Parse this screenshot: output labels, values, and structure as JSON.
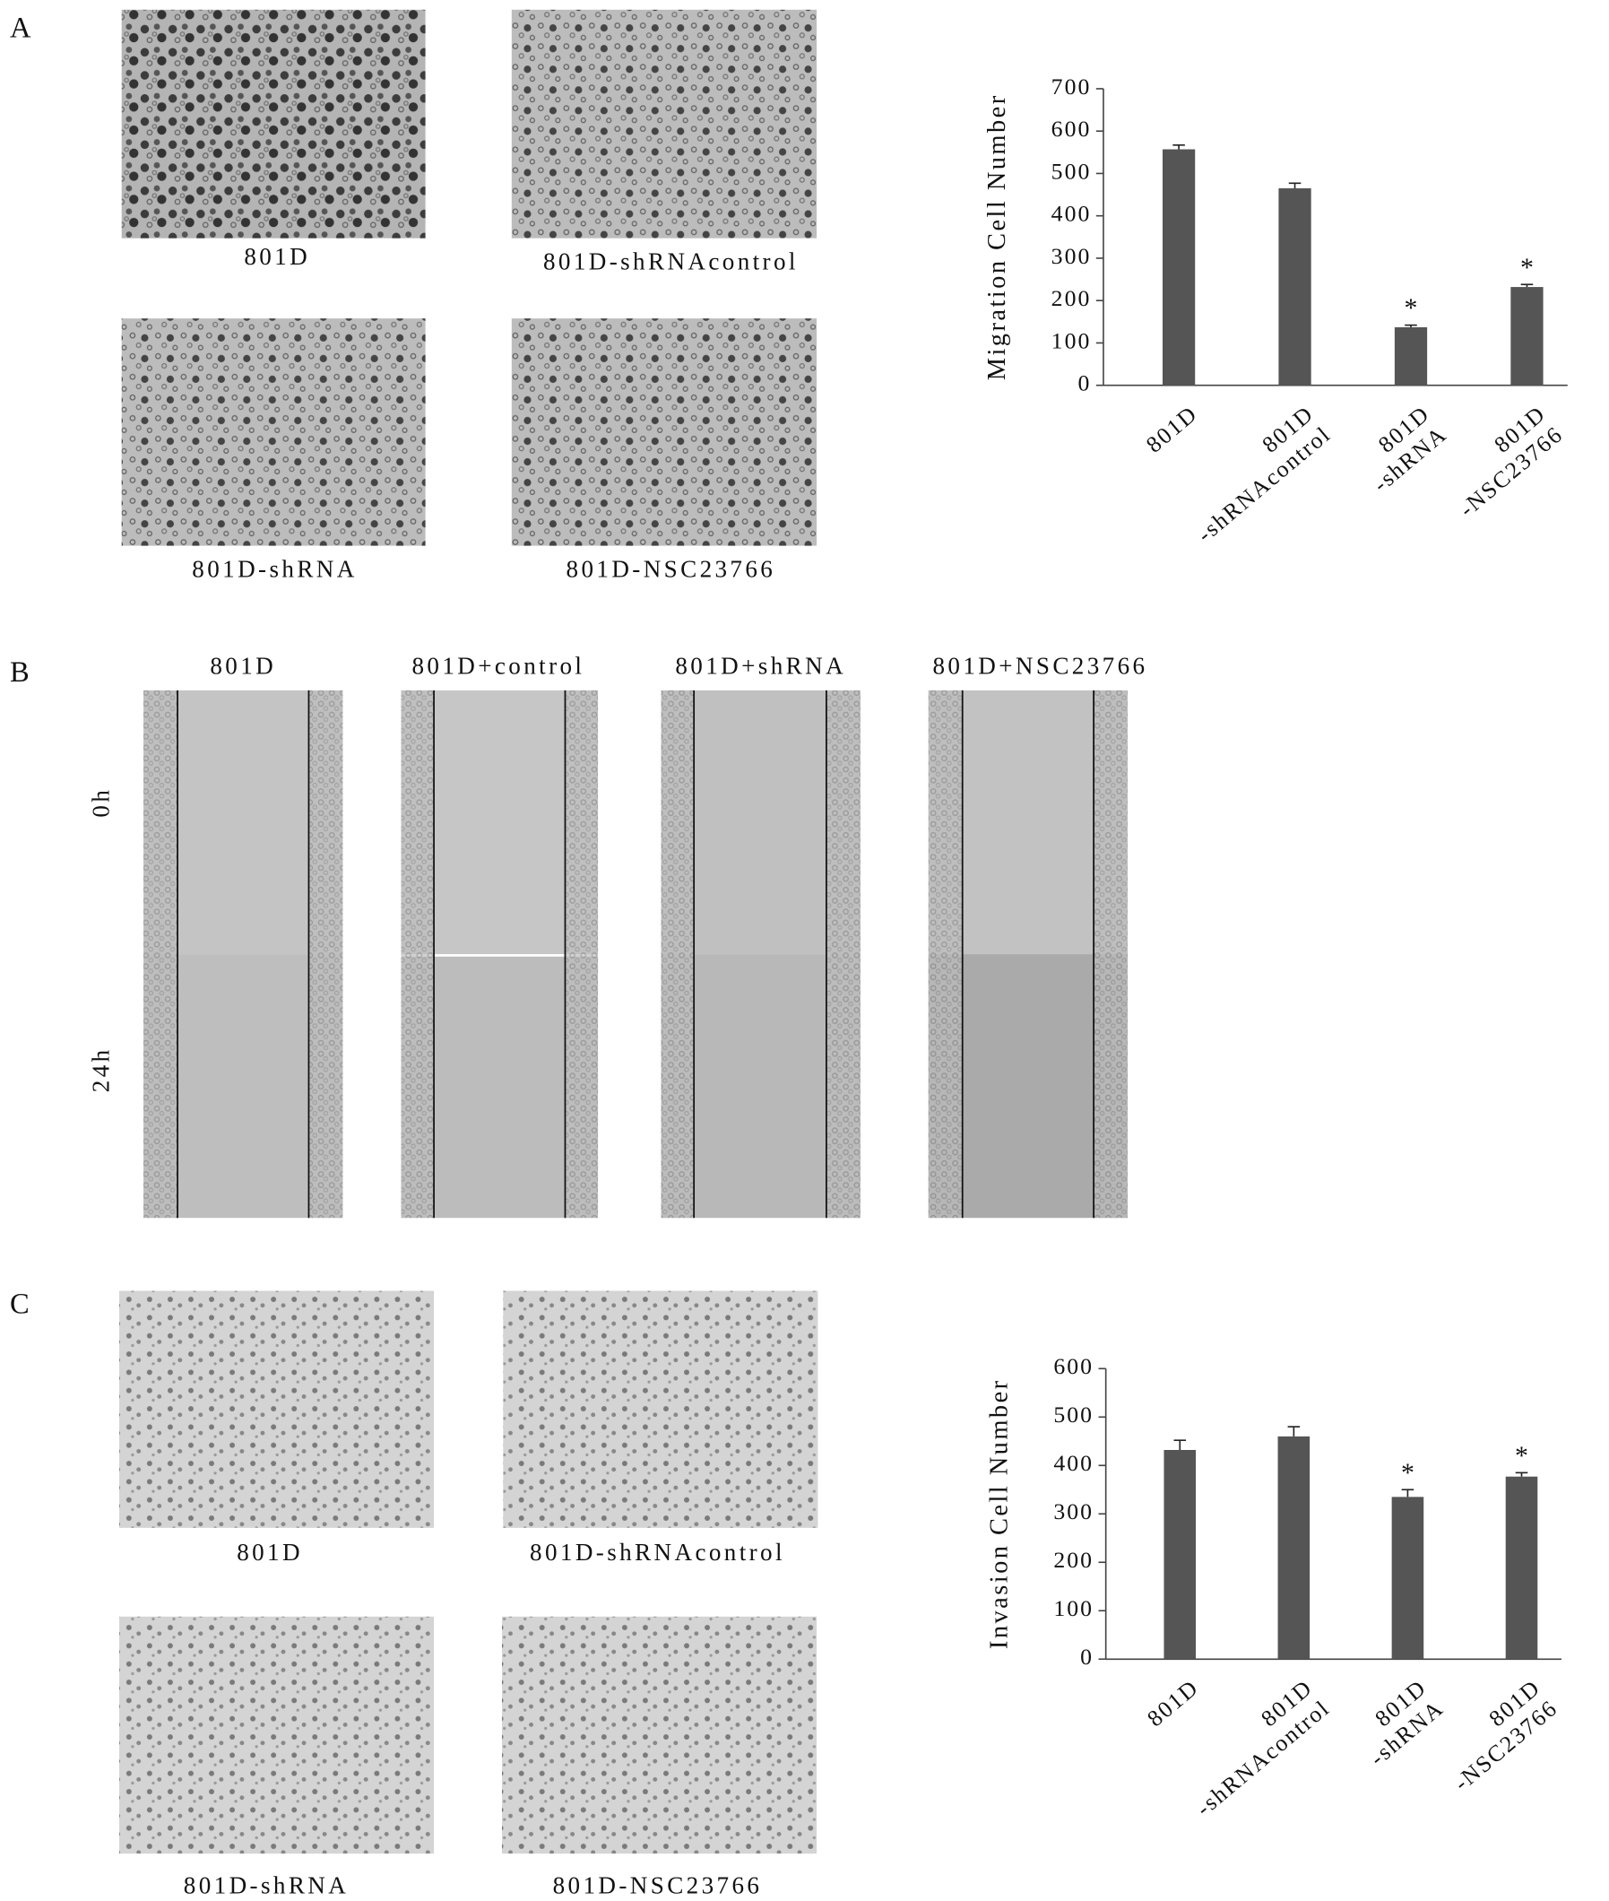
{
  "panel_labels": [
    "A",
    "B",
    "C"
  ],
  "panel_a": {
    "captions": [
      "801D",
      "801D-shRNAcontrol",
      "801D-shRNA",
      "801D-NSC23766"
    ]
  },
  "panel_b": {
    "columns": [
      "801D",
      "801D+control",
      "801D+shRNA",
      "801D+NSC23766"
    ],
    "rows": [
      "0h",
      "24h"
    ]
  },
  "panel_c": {
    "captions": [
      "801D",
      "801D-shRNAcontrol",
      "801D-shRNA",
      "801D-NSC23766"
    ]
  },
  "chart_data": [
    {
      "type": "bar",
      "y_label": "Migration Cell Number",
      "categories": [
        [
          "801D"
        ],
        [
          "801D",
          "-shRNAcontrol"
        ],
        [
          "801D",
          "-shRNA"
        ],
        [
          "801D",
          "-NSC23766"
        ]
      ],
      "values": [
        557,
        465,
        137,
        232
      ],
      "errors": [
        10,
        12,
        5,
        6
      ],
      "significance": [
        null,
        null,
        "*",
        "*"
      ],
      "color": "#555555",
      "ylim": [
        0,
        700
      ],
      "yticks": [
        0,
        100,
        200,
        300,
        400,
        500,
        600,
        700
      ]
    },
    {
      "type": "bar",
      "y_label": "Invasion Cell Number",
      "categories": [
        [
          "801D"
        ],
        [
          "801D",
          "-shRNAcontrol"
        ],
        [
          "801D",
          "-shRNA"
        ],
        [
          "801D",
          "-NSC23766"
        ]
      ],
      "values": [
        432,
        460,
        335,
        377
      ],
      "errors": [
        20,
        20,
        15,
        8
      ],
      "significance": [
        null,
        null,
        "*",
        "*"
      ],
      "color": "#555555",
      "ylim": [
        0,
        600
      ],
      "yticks": [
        0,
        100,
        200,
        300,
        400,
        500,
        600
      ]
    }
  ]
}
